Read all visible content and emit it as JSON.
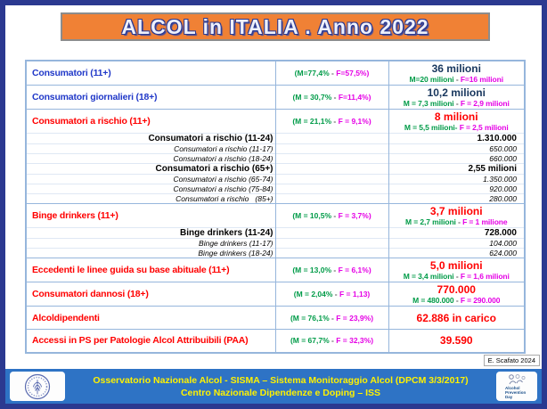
{
  "title": "ALCOL in ITALIA . Anno 2022",
  "credit": "E. Scafato 2024",
  "colors": {
    "frame_blue": "#2B3990",
    "accent_orange": "#F08135",
    "footer_blue": "#2E73C5",
    "footer_yellow": "#FFF200",
    "table_border": "#96B6DC",
    "label_blue": "#2038C8",
    "value_navy": "#17365D",
    "stat_red": "#FF0000",
    "male_green": "#009B48",
    "female_magenta": "#E500E5"
  },
  "table": {
    "rows": [
      {
        "type": "main",
        "label": "Consumatori (11+)",
        "label_color": "blue",
        "pct_m": "(M=77,4%",
        "pct_sep": " - ",
        "pct_f": "F=57,5%)",
        "value": "36 milioni",
        "value_color": "navy",
        "mf_m": "M=20 milioni",
        "mf_sep": " - ",
        "mf_f": "F=16 milioni"
      },
      {
        "type": "main",
        "label": "Consumatori giornalieri (18+)",
        "label_color": "blue",
        "pct_m": "(M = 30,7%",
        "pct_sep": " - ",
        "pct_f": "F=11,4%)",
        "value": "10,2 milioni",
        "value_color": "navy",
        "mf_m": "M = 7,3 milioni",
        "mf_sep": " - ",
        "mf_f": "F = 2,9 milioni"
      },
      {
        "type": "main",
        "label": "Consumatori a rischio (11+)",
        "label_color": "red",
        "pct_m": "(M = 21,1%",
        "pct_sep": " - ",
        "pct_f": "F = 9,1%)",
        "value": "8 milioni",
        "value_color": "red",
        "mf_m": "M = 5,5 milioni-",
        "mf_sep": " ",
        "mf_f": "F = 2,5 milioni"
      },
      {
        "type": "sub-bold",
        "label": "Consumatori a rischio (11-24)",
        "value": "1.310.000"
      },
      {
        "type": "sub-italic",
        "label": "Consumatori a rischio (11-17)",
        "value": "650.000"
      },
      {
        "type": "sub-italic",
        "label": "Consumatori a rischio (18-24)",
        "value": "660.000"
      },
      {
        "type": "sub-bold",
        "label": "Consumatori a rischio (65+)",
        "value": "2,55 milioni"
      },
      {
        "type": "sub-italic",
        "label": "Consumatori a rischio (65-74)",
        "value": "1.350.000"
      },
      {
        "type": "sub-italic",
        "label": "Consumatori a rischio (75-84)",
        "value": "920.000"
      },
      {
        "type": "sub-italic",
        "label": "Consumatori a rischio   (85+)",
        "value": "280.000"
      },
      {
        "type": "main",
        "label": "Binge drinkers (11+)",
        "label_color": "red",
        "pct_m": "(M = 10,5%",
        "pct_sep": " - ",
        "pct_f": "F = 3,7%)",
        "value": "3,7 milioni",
        "value_color": "red",
        "mf_m": "M = 2,7 milioni",
        "mf_sep": " - ",
        "mf_f": "F = 1 milione"
      },
      {
        "type": "sub-bold",
        "label": "Binge drinkers (11-24)",
        "value": "728.000"
      },
      {
        "type": "sub-italic",
        "label": "Binge drinkers (11-17)",
        "value": "104.000"
      },
      {
        "type": "sub-italic",
        "label": "Binge drinkers (18-24)",
        "value": "624.000"
      },
      {
        "type": "main",
        "label": "Eccedenti le linee guida su base abituale (11+)",
        "label_color": "red",
        "pct_m": "(M = 13,0%",
        "pct_sep": " - ",
        "pct_f": "F = 6,1%)",
        "value": "5,0 milioni",
        "value_color": "red",
        "mf_m": "M = 3,4 milioni",
        "mf_sep": " - ",
        "mf_f": "F = 1,6 milioni"
      },
      {
        "type": "main",
        "label": "Consumatori dannosi (18+)",
        "label_color": "red",
        "pct_m": "(M = 2,04%",
        "pct_sep": " - ",
        "pct_f": "F = 1,13)",
        "value": "770.000",
        "value_color": "red",
        "mf_m": "M = 480.000",
        "mf_sep": " - ",
        "mf_f": "F = 290.000"
      },
      {
        "type": "main",
        "label": "Alcoldipendenti",
        "label_color": "red",
        "pct_m": "(M = 76,1%",
        "pct_sep": " - ",
        "pct_f": "F = 23,9%)",
        "value": "62.886 in carico",
        "value_color": "red"
      },
      {
        "type": "main",
        "label": "Accessi in PS per Patologie Alcol Attribuibili (PAA)",
        "label_color": "red",
        "pct_m": "(M = 67,7%",
        "pct_sep": " - ",
        "pct_f": "F = 32,3%)",
        "value": "39.590",
        "value_color": "red"
      }
    ]
  },
  "footer": {
    "line1": "Osservatorio Nazionale Alcol - SISMA – Sistema Monitoraggio Alcol (DPCM 3/3/2017)",
    "line2": "Centro Nazionale Dipendenze e Doping – ISS",
    "left_logo": "Istituto Superiore di Sanità",
    "right_logo": "Alcohol Prevention Day"
  }
}
